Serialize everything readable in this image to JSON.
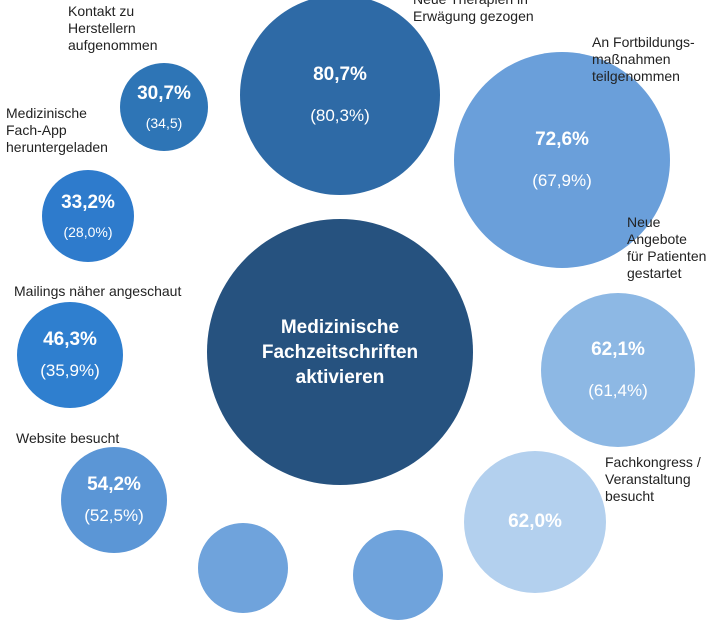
{
  "chart_data": {
    "type": "bubble",
    "center": {
      "label": "Medizinische\nFachzeitschriften\naktivieren",
      "color": "#26527f"
    },
    "items": [
      {
        "id": "hersteller",
        "label": "Kontakt zu\nHerstellern\naufgenommen",
        "value": "30,7%",
        "prev": "(34,5)",
        "value_num": 30.7,
        "prev_num": 34.5,
        "color": "#2e75b6"
      },
      {
        "id": "therapien",
        "label": "Neue Therapien in\nErwägung gezogen",
        "value": "80,7%",
        "prev": "(80,3%)",
        "value_num": 80.7,
        "prev_num": 80.3,
        "color": "#2e6aa6"
      },
      {
        "id": "fortbildung",
        "label": "An Fortbildungs-\nmaßnahmen\nteilgenommen",
        "value": "72,6%",
        "prev": "(67,9%)",
        "value_num": 72.6,
        "prev_num": 67.9,
        "color": "#6a9fda"
      },
      {
        "id": "app",
        "label": "Medizinische\nFach-App\nheruntergeladen",
        "value": "33,2%",
        "prev": "(28,0%)",
        "value_num": 33.2,
        "prev_num": 28.0,
        "color": "#2e7bcc"
      },
      {
        "id": "angebote",
        "label": "Neue\nAngebote\nfür Patienten\ngestartet",
        "value": "62,1%",
        "prev": "(61,4%)",
        "value_num": 62.1,
        "prev_num": 61.4,
        "color": "#8db8e4"
      },
      {
        "id": "mailings",
        "label": "Mailings näher angeschaut",
        "value": "46,3%",
        "prev": "(35,9%)",
        "value_num": 46.3,
        "prev_num": 35.9,
        "color": "#2f7fcf"
      },
      {
        "id": "website",
        "label": "Website besucht",
        "value": "54,2%",
        "prev": "(52,5%)",
        "value_num": 54.2,
        "prev_num": 52.5,
        "color": "#5b96d6"
      },
      {
        "id": "kongress",
        "label": "Fachkongress /\nVeranstaltung\nbesucht",
        "value": "62,0%",
        "prev": "",
        "value_num": 62.0,
        "prev_num": null,
        "color": "#b3d0ee"
      },
      {
        "id": "partial1",
        "label": "",
        "value": "",
        "prev": "",
        "value_num": null,
        "prev_num": null,
        "color": "#6fa3dc"
      },
      {
        "id": "partial2",
        "label": "",
        "value": "",
        "prev": "",
        "value_num": null,
        "prev_num": null,
        "color": "#6fa3dc"
      }
    ]
  }
}
